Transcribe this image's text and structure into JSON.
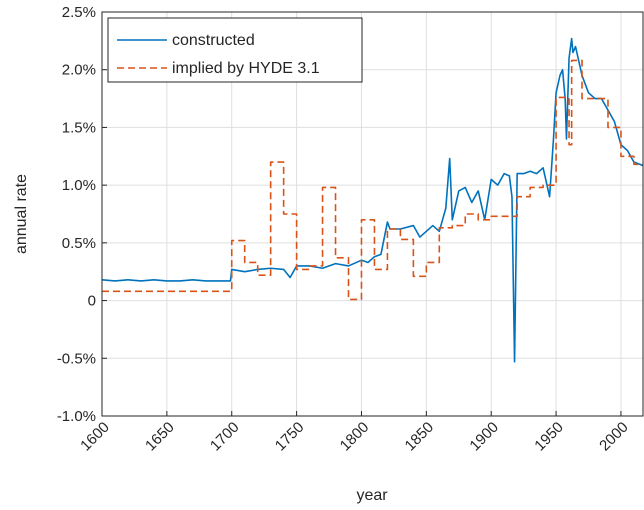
{
  "chart_data": {
    "type": "line",
    "xlabel": "year",
    "ylabel": "annual rate",
    "xlim": [
      1600,
      2017
    ],
    "ylim": [
      -1.0,
      2.5
    ],
    "xticks": [
      1600,
      1650,
      1700,
      1750,
      1800,
      1850,
      1900,
      1950,
      2000
    ],
    "yticks": [
      {
        "value": -1.0,
        "label": "-1.0%"
      },
      {
        "value": -0.5,
        "label": "-0.5%"
      },
      0,
      {
        "value": 0.5,
        "label": "0.5%"
      },
      {
        "value": 1.0,
        "label": "1.0%"
      },
      {
        "value": 1.5,
        "label": "1.5%"
      },
      {
        "value": 2.0,
        "label": "2.0%"
      },
      {
        "value": 2.5,
        "label": "2.5%"
      }
    ],
    "grid": true,
    "legend": "upper left",
    "series": [
      {
        "name": "constructed",
        "color": "#0072bd",
        "dash": false,
        "x": [
          1600,
          1610,
          1620,
          1630,
          1640,
          1650,
          1660,
          1670,
          1680,
          1690,
          1699,
          1700,
          1705,
          1710,
          1720,
          1730,
          1740,
          1745,
          1750,
          1760,
          1770,
          1780,
          1790,
          1800,
          1805,
          1810,
          1815,
          1820,
          1822,
          1830,
          1840,
          1845,
          1850,
          1855,
          1860,
          1865,
          1868,
          1870,
          1875,
          1880,
          1885,
          1890,
          1895,
          1900,
          1905,
          1910,
          1914,
          1916,
          1918,
          1920,
          1925,
          1930,
          1935,
          1940,
          1945,
          1948,
          1950,
          1953,
          1955,
          1957,
          1958,
          1960,
          1962,
          1963,
          1965,
          1968,
          1970,
          1975,
          1980,
          1985,
          1990,
          1995,
          2000,
          2005,
          2010,
          2017
        ],
        "values": [
          0.18,
          0.17,
          0.18,
          0.17,
          0.18,
          0.17,
          0.17,
          0.18,
          0.17,
          0.17,
          0.17,
          0.27,
          0.26,
          0.25,
          0.27,
          0.28,
          0.27,
          0.2,
          0.3,
          0.3,
          0.28,
          0.32,
          0.3,
          0.35,
          0.33,
          0.38,
          0.4,
          0.68,
          0.62,
          0.62,
          0.65,
          0.55,
          0.6,
          0.65,
          0.6,
          0.8,
          1.23,
          0.7,
          0.95,
          0.98,
          0.85,
          0.95,
          0.7,
          1.05,
          1.0,
          1.1,
          1.08,
          0.9,
          -0.53,
          1.1,
          1.1,
          1.12,
          1.1,
          1.15,
          0.9,
          1.4,
          1.8,
          1.95,
          2.0,
          1.75,
          1.4,
          2.1,
          2.27,
          2.15,
          2.2,
          2.05,
          1.95,
          1.8,
          1.75,
          1.75,
          1.65,
          1.55,
          1.35,
          1.3,
          1.2,
          1.17
        ]
      },
      {
        "name": "implied by HYDE 3.1",
        "color": "#d95319",
        "dash": true,
        "x": [
          1600,
          1700,
          1700,
          1710,
          1710,
          1720,
          1720,
          1730,
          1730,
          1740,
          1740,
          1750,
          1750,
          1760,
          1760,
          1770,
          1770,
          1780,
          1780,
          1790,
          1790,
          1800,
          1800,
          1810,
          1810,
          1820,
          1820,
          1830,
          1830,
          1840,
          1840,
          1850,
          1850,
          1860,
          1860,
          1870,
          1870,
          1880,
          1880,
          1890,
          1890,
          1900,
          1900,
          1920,
          1920,
          1930,
          1930,
          1940,
          1940,
          1950,
          1950,
          1960,
          1960,
          1962,
          1962,
          1970,
          1970,
          1990,
          1990,
          2000,
          2000,
          2010,
          2010,
          2017
        ],
        "values": [
          0.08,
          0.08,
          0.52,
          0.52,
          0.33,
          0.33,
          0.22,
          0.22,
          1.2,
          1.2,
          0.75,
          0.75,
          0.27,
          0.27,
          0.3,
          0.3,
          0.98,
          0.98,
          0.37,
          0.37,
          0.01,
          0.01,
          0.7,
          0.7,
          0.27,
          0.27,
          0.62,
          0.62,
          0.53,
          0.53,
          0.21,
          0.21,
          0.33,
          0.33,
          0.63,
          0.63,
          0.65,
          0.65,
          0.75,
          0.75,
          0.7,
          0.7,
          0.73,
          0.73,
          0.9,
          0.9,
          0.98,
          0.98,
          1.0,
          1.0,
          1.76,
          1.76,
          1.35,
          1.35,
          2.08,
          2.08,
          1.75,
          1.75,
          1.5,
          1.5,
          1.25,
          1.25,
          1.18,
          1.18
        ]
      }
    ]
  }
}
